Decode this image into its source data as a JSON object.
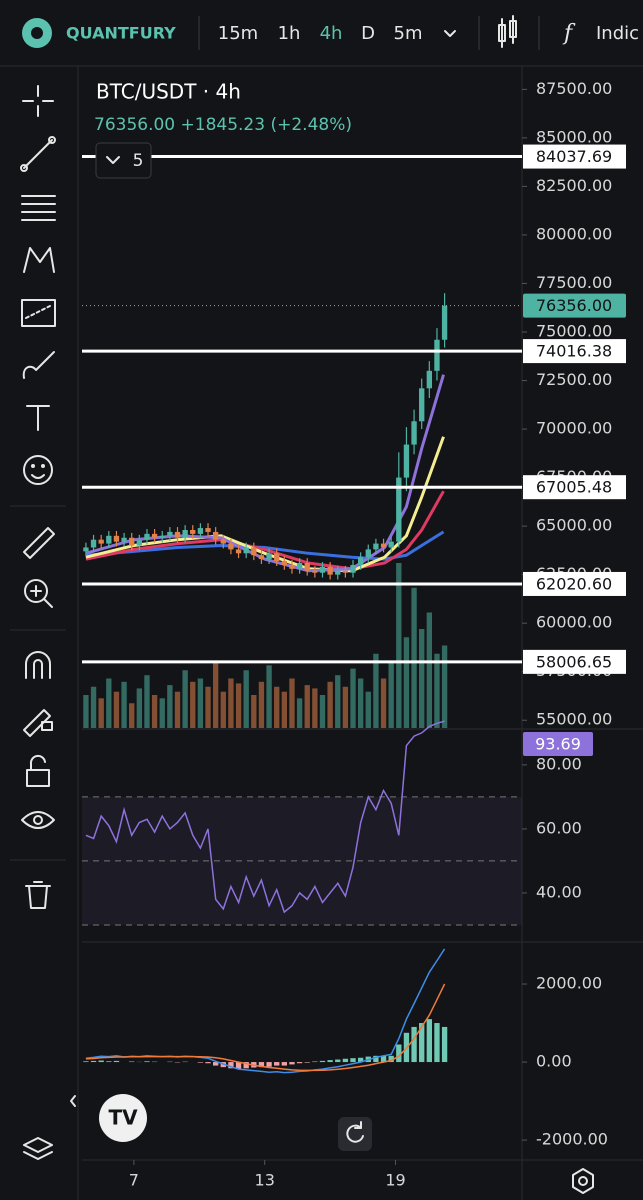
{
  "header": {
    "brand": "QUANTFURY",
    "timeframes": [
      "15m",
      "1h",
      "4h",
      "D",
      "5m"
    ],
    "indicators_label": "Indic"
  },
  "chart_data": [
    {
      "type": "candlestick",
      "title": "BTC/USDT · 4h",
      "subtitle": "76356.00 +1845.23 (+2.48%)",
      "collapsed_indicators": 5,
      "x": [
        4.8,
        5.15,
        5.5,
        5.85,
        6.2,
        6.55,
        6.9,
        7.25,
        7.6,
        7.95,
        8.3,
        8.65,
        9,
        9.35,
        9.7,
        10.05,
        10.4,
        10.75,
        11.1,
        11.45,
        11.8,
        12.15,
        12.5,
        12.85,
        13.2,
        13.55,
        13.9,
        14.25,
        14.6,
        14.95,
        15.3,
        15.65,
        16,
        16.35,
        16.7,
        17.05,
        17.4,
        17.75,
        18.1,
        18.45,
        18.8,
        19.15,
        19.5,
        19.85,
        20.2,
        20.55,
        20.9,
        21.25
      ],
      "open": [
        63700,
        63900,
        64300,
        64100,
        64500,
        64200,
        64400,
        64000,
        64300,
        64600,
        64400,
        64500,
        64700,
        64400,
        64800,
        64600,
        64900,
        64700,
        64300,
        64100,
        63800,
        63600,
        63900,
        63500,
        63300,
        63600,
        63200,
        63000,
        62800,
        63100,
        62700,
        62600,
        62900,
        62500,
        62700,
        62600,
        63000,
        63400,
        63800,
        64100,
        63900,
        64200,
        67500,
        69200,
        70400,
        72100,
        73000,
        74600
      ],
      "high": [
        64150,
        64550,
        64550,
        64750,
        64750,
        64650,
        64650,
        64550,
        64850,
        64850,
        64750,
        64950,
        64950,
        65050,
        65050,
        65150,
        65150,
        64950,
        64550,
        64350,
        64050,
        64150,
        64150,
        63750,
        63850,
        63850,
        63450,
        63250,
        63350,
        63350,
        62950,
        63150,
        63150,
        62950,
        62950,
        63250,
        63650,
        64050,
        64350,
        64350,
        64450,
        68800,
        70100,
        71000,
        72600,
        73500,
        75200,
        77000
      ],
      "low": [
        63450,
        63650,
        63850,
        63850,
        63950,
        63950,
        63750,
        63750,
        64050,
        64150,
        64150,
        64250,
        64150,
        64150,
        64350,
        64350,
        64450,
        64050,
        63850,
        63550,
        63350,
        63350,
        63250,
        63050,
        63050,
        62950,
        62750,
        62550,
        62550,
        62450,
        62350,
        62350,
        62250,
        62250,
        62350,
        62350,
        62750,
        63150,
        63550,
        63650,
        63650,
        63900,
        66800,
        68700,
        70000,
        71600,
        72500,
        74200
      ],
      "close": [
        63900,
        64300,
        64100,
        64500,
        64200,
        64400,
        64000,
        64300,
        64600,
        64400,
        64500,
        64700,
        64400,
        64800,
        64600,
        64900,
        64700,
        64300,
        64100,
        63800,
        63600,
        63900,
        63500,
        63300,
        63600,
        63200,
        63000,
        62800,
        63100,
        62700,
        62600,
        62900,
        62500,
        62700,
        62600,
        63000,
        63400,
        63800,
        64100,
        63900,
        64200,
        67500,
        69200,
        70400,
        72100,
        73000,
        74600,
        76356
      ],
      "volume": [
        20,
        25,
        18,
        30,
        22,
        28,
        15,
        24,
        32,
        20,
        18,
        26,
        22,
        35,
        28,
        30,
        25,
        40,
        22,
        30,
        27,
        35,
        20,
        28,
        38,
        25,
        22,
        30,
        18,
        26,
        24,
        20,
        28,
        32,
        25,
        36,
        30,
        22,
        45,
        30,
        40,
        100,
        55,
        85,
        60,
        70,
        45,
        50
      ],
      "up_color": "#4fb3a3",
      "down_color": "#e0824a",
      "overlays": [
        {
          "color": "#3a6fe0",
          "x": [
            4.8,
            7,
            9,
            11,
            13,
            15,
            17,
            18.5,
            19.5,
            20.2,
            21.2
          ],
          "values": [
            63500,
            63700,
            63900,
            64000,
            63900,
            63600,
            63400,
            63300,
            63500,
            64000,
            64700
          ]
        },
        {
          "color": "#de3a63",
          "x": [
            4.8,
            7,
            9,
            11,
            13,
            15,
            17,
            18.5,
            19.5,
            20.2,
            21.2
          ],
          "values": [
            63300,
            63800,
            64100,
            64300,
            63800,
            63100,
            62800,
            63100,
            63800,
            64800,
            66800
          ]
        },
        {
          "color": "#f4ee90",
          "x": [
            4.8,
            7,
            9,
            11,
            13,
            15,
            17,
            18.5,
            19.5,
            20.2,
            21.2
          ],
          "values": [
            63400,
            64000,
            64300,
            64500,
            63600,
            62800,
            62700,
            63400,
            64500,
            66500,
            69600
          ]
        },
        {
          "color": "#8e72dc",
          "x": [
            4.8,
            7,
            9,
            11,
            13,
            15,
            17,
            18.5,
            19.5,
            20.2,
            21.2
          ],
          "values": [
            63600,
            64300,
            64500,
            64400,
            63300,
            62700,
            62800,
            63900,
            66000,
            69000,
            72800
          ]
        }
      ],
      "xlim": [
        4.62,
        24.8
      ],
      "xticks": [
        7,
        13,
        19
      ],
      "ylim": [
        54600,
        88600
      ],
      "yticks": [
        {
          "value": 55000,
          "label": "55000.00"
        },
        {
          "value": 57500,
          "label": "57500.00"
        },
        {
          "value": 60000,
          "label": "60000.00"
        },
        {
          "value": 62500,
          "label": "62500.00"
        },
        {
          "value": 65000,
          "label": "65000.00"
        },
        {
          "value": 67500,
          "label": "67500.00"
        },
        {
          "value": 70000,
          "label": "70000.00"
        },
        {
          "value": 72500,
          "label": "72500.00"
        },
        {
          "value": 75000,
          "label": "75000.00"
        },
        {
          "value": 77500,
          "label": "77500.00"
        },
        {
          "value": 80000,
          "label": "80000.00"
        },
        {
          "value": 82500,
          "label": "82500.00"
        },
        {
          "value": 85000,
          "label": "85000.00"
        },
        {
          "value": 87500,
          "label": "87500.00"
        }
      ],
      "levels": [
        {
          "value": 84037.69,
          "label": "84037.69"
        },
        {
          "value": 74016.38,
          "label": "74016.38"
        },
        {
          "value": 67005.48,
          "label": "67005.48"
        },
        {
          "value": 62020.6,
          "label": "62020.60"
        },
        {
          "value": 58006.65,
          "label": "58006.65"
        }
      ],
      "last_price": {
        "value": 76356,
        "label": "76356.00"
      },
      "last_price_color": "#4fb3a3"
    },
    {
      "type": "line",
      "series": [
        {
          "color": "#8e72dc",
          "values": [
            58,
            57,
            64,
            61,
            56,
            66,
            58,
            62,
            63,
            59,
            64,
            60,
            62,
            65,
            58,
            54,
            60,
            38,
            35,
            42,
            37,
            45,
            39,
            44,
            36,
            41,
            34,
            36,
            40,
            38,
            42,
            37,
            40,
            43,
            39,
            48,
            62,
            70,
            66,
            72,
            68,
            58,
            86,
            89,
            90,
            92,
            93,
            93.69
          ]
        }
      ],
      "bands": [
        30,
        50,
        70
      ],
      "band_color": "#8e72dc",
      "ylim": [
        25.3,
        90.9
      ],
      "yticks": [
        {
          "value": 40,
          "label": "40.00"
        },
        {
          "value": 60,
          "label": "60.00"
        },
        {
          "value": 80,
          "label": "80.00"
        }
      ]
    },
    {
      "type": "macd",
      "series": [
        {
          "color": "#3d8ee8",
          "values": [
            100,
            120,
            150,
            140,
            160,
            130,
            150,
            140,
            160,
            150,
            140,
            150,
            130,
            150,
            140,
            120,
            100,
            20,
            -50,
            -120,
            -180,
            -200,
            -220,
            -240,
            -260,
            -250,
            -270,
            -260,
            -240,
            -230,
            -200,
            -180,
            -150,
            -120,
            -80,
            -40,
            0,
            60,
            120,
            160,
            200,
            600,
            1100,
            1500,
            1900,
            2300,
            2600,
            2900
          ]
        },
        {
          "color": "#f07a3a",
          "values": [
            80,
            90,
            110,
            120,
            130,
            130,
            135,
            135,
            140,
            140,
            140,
            140,
            140,
            140,
            140,
            135,
            130,
            110,
            80,
            40,
            0,
            -40,
            -80,
            -110,
            -140,
            -160,
            -180,
            -200,
            -210,
            -215,
            -215,
            -210,
            -200,
            -185,
            -165,
            -140,
            -110,
            -80,
            -40,
            0,
            40,
            150,
            350,
            600,
            900,
            1200,
            1600,
            2000
          ]
        }
      ],
      "histogram": [
        20,
        30,
        40,
        20,
        30,
        0,
        15,
        5,
        20,
        10,
        0,
        10,
        -10,
        10,
        0,
        -15,
        -30,
        -90,
        -130,
        -160,
        -180,
        -160,
        -140,
        -130,
        -120,
        -90,
        -90,
        -60,
        -30,
        -15,
        15,
        30,
        50,
        65,
        85,
        100,
        110,
        140,
        160,
        160,
        160,
        450,
        750,
        900,
        1000,
        1100,
        1000,
        900
      ],
      "histogram_up_color": "#6fc9b4",
      "histogram_down_color": "#f0a0a8",
      "ylim": [
        -2510,
        3000
      ],
      "yticks": [
        {
          "value": -2000,
          "label": "-2000.00"
        },
        {
          "value": 0,
          "label": "0.00"
        },
        {
          "value": 2000,
          "label": "2000.00"
        }
      ]
    }
  ]
}
